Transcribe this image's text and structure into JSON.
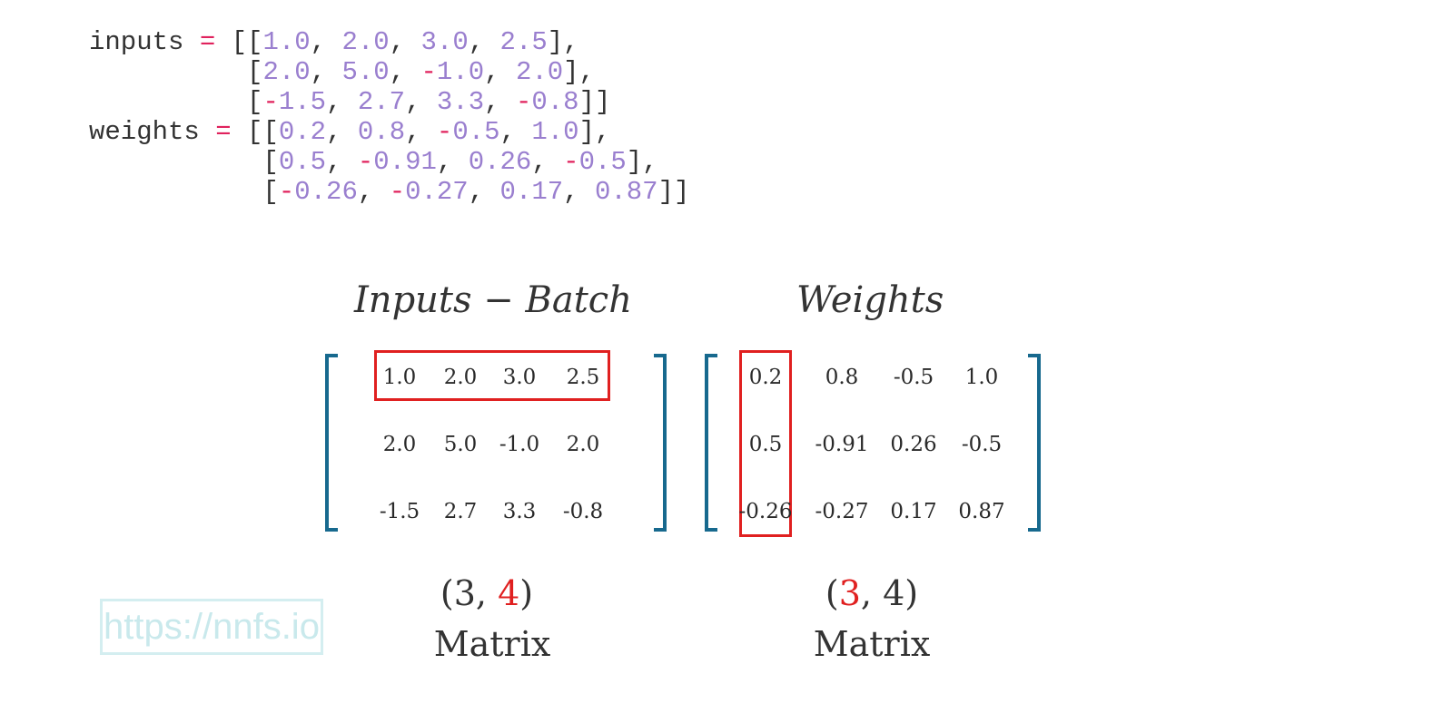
{
  "code": {
    "inputs_name": "inputs",
    "inputs_rows": [
      [
        "1.0",
        "2.0",
        "3.0",
        "2.5"
      ],
      [
        "2.0",
        "5.0",
        "-1.0",
        "2.0"
      ],
      [
        "-1.5",
        "2.7",
        "3.3",
        "-0.8"
      ]
    ],
    "weights_name": "weights",
    "weights_rows": [
      [
        "0.2",
        "0.8",
        "-0.5",
        "1.0"
      ],
      [
        "0.5",
        "-0.91",
        "0.26",
        "-0.5"
      ],
      [
        "-0.26",
        "-0.27",
        "0.17",
        "0.87"
      ]
    ]
  },
  "inputs_matrix": {
    "heading": "Inputs − Batch",
    "rows": [
      [
        "1.0",
        "2.0",
        "3.0",
        "2.5"
      ],
      [
        "2.0",
        "5.0",
        "-1.0",
        "2.0"
      ],
      [
        "-1.5",
        "2.7",
        "3.3",
        "-0.8"
      ]
    ],
    "highlight": "row 0",
    "shape_open": "(3, ",
    "shape_red": "4",
    "shape_close": ")",
    "label": "Matrix"
  },
  "weights_matrix": {
    "heading": "Weights",
    "rows": [
      [
        "0.2",
        "0.8",
        "-0.5",
        "1.0"
      ],
      [
        "0.5",
        "-0.91",
        "0.26",
        "-0.5"
      ],
      [
        "-0.26",
        "-0.27",
        "0.17",
        "0.87"
      ]
    ],
    "highlight": "column 0",
    "shape_open": "(",
    "shape_red": "3",
    "shape_close": ", 4)",
    "label": "Matrix"
  },
  "watermark": "https://nnfs.io",
  "colors": {
    "bracket": "#17698e",
    "highlight": "#e02020",
    "code_number": "#9a7fcf",
    "code_operator": "#e0225d",
    "watermark": "#c9e9ec"
  }
}
